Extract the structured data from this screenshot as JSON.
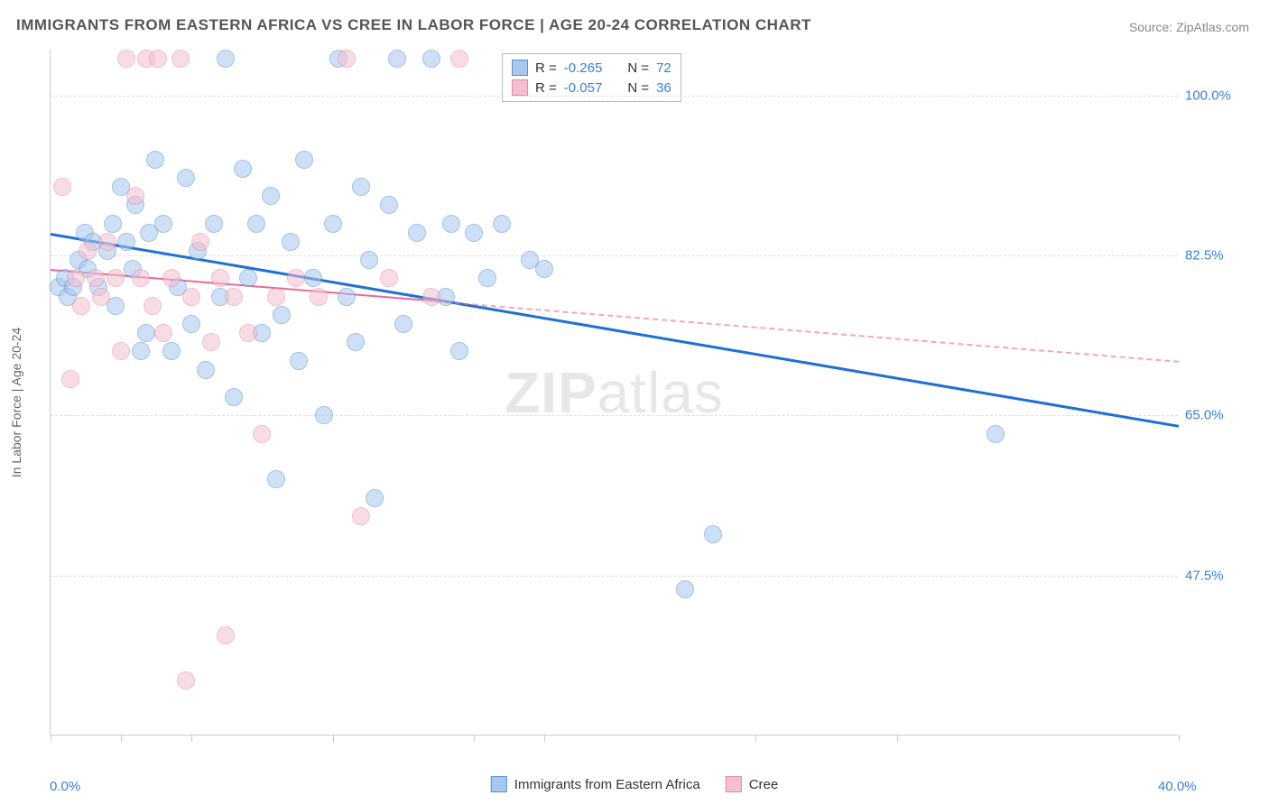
{
  "title": "IMMIGRANTS FROM EASTERN AFRICA VS CREE IN LABOR FORCE | AGE 20-24 CORRELATION CHART",
  "source": "Source: ZipAtlas.com",
  "y_axis_label": "In Labor Force | Age 20-24",
  "watermark_bold": "ZIP",
  "watermark_rest": "atlas",
  "chart": {
    "type": "scatter",
    "xlim": [
      0,
      40
    ],
    "ylim": [
      30,
      105
    ],
    "x_ticks": [
      0,
      2.5,
      5,
      10,
      15,
      17.5,
      25,
      30,
      40
    ],
    "y_gridlines": [
      47.5,
      65.0,
      82.5,
      100.0
    ],
    "y_tick_labels": [
      "47.5%",
      "65.0%",
      "82.5%",
      "100.0%"
    ],
    "x_min_label": "0.0%",
    "x_max_label": "40.0%",
    "background_color": "#ffffff",
    "grid_color": "#dddddd",
    "axis_color": "#cccccc",
    "tick_label_color": "#3b7dd8",
    "point_radius": 10,
    "point_opacity": 0.55,
    "series": [
      {
        "name": "Immigrants from Eastern Africa",
        "fill_color": "#a7c7ed",
        "stroke_color": "#5a8fd6",
        "trend_color": "#1f6fd4",
        "trend_width": 3,
        "trend_dash": "solid",
        "R": "-0.265",
        "N": "72",
        "trend": {
          "x1": 0,
          "y1": 85,
          "x2": 40,
          "y2": 64
        },
        "points": [
          [
            0.3,
            79
          ],
          [
            0.5,
            80
          ],
          [
            0.6,
            78
          ],
          [
            0.8,
            79
          ],
          [
            1.0,
            82
          ],
          [
            1.2,
            85
          ],
          [
            1.3,
            81
          ],
          [
            1.5,
            84
          ],
          [
            1.7,
            79
          ],
          [
            2.0,
            83
          ],
          [
            2.2,
            86
          ],
          [
            2.3,
            77
          ],
          [
            2.5,
            90
          ],
          [
            2.7,
            84
          ],
          [
            2.9,
            81
          ],
          [
            3.0,
            88
          ],
          [
            3.2,
            72
          ],
          [
            3.4,
            74
          ],
          [
            3.5,
            85
          ],
          [
            3.7,
            93
          ],
          [
            4.0,
            86
          ],
          [
            4.3,
            72
          ],
          [
            4.5,
            79
          ],
          [
            4.8,
            91
          ],
          [
            5.0,
            75
          ],
          [
            5.2,
            83
          ],
          [
            5.5,
            70
          ],
          [
            5.8,
            86
          ],
          [
            6.0,
            78
          ],
          [
            6.2,
            104
          ],
          [
            6.5,
            67
          ],
          [
            6.8,
            92
          ],
          [
            7.0,
            80
          ],
          [
            7.3,
            86
          ],
          [
            7.5,
            74
          ],
          [
            7.8,
            89
          ],
          [
            8.0,
            58
          ],
          [
            8.2,
            76
          ],
          [
            8.5,
            84
          ],
          [
            8.8,
            71
          ],
          [
            9.0,
            93
          ],
          [
            9.3,
            80
          ],
          [
            9.7,
            65
          ],
          [
            10.0,
            86
          ],
          [
            10.2,
            104
          ],
          [
            10.5,
            78
          ],
          [
            10.8,
            73
          ],
          [
            11.0,
            90
          ],
          [
            11.3,
            82
          ],
          [
            11.5,
            56
          ],
          [
            12.0,
            88
          ],
          [
            12.3,
            104
          ],
          [
            12.5,
            75
          ],
          [
            13.0,
            85
          ],
          [
            13.5,
            104
          ],
          [
            14.0,
            78
          ],
          [
            14.2,
            86
          ],
          [
            14.5,
            72
          ],
          [
            15.0,
            85
          ],
          [
            15.5,
            80
          ],
          [
            16.0,
            86
          ],
          [
            17.0,
            82
          ],
          [
            17.5,
            81
          ],
          [
            22.5,
            46
          ],
          [
            23.5,
            52
          ],
          [
            33.5,
            63
          ]
        ]
      },
      {
        "name": "Cree",
        "fill_color": "#f3c0cf",
        "stroke_color": "#e48aa5",
        "trend_color": "#e76a93",
        "trend_width": 2,
        "trend_dash": "dashed",
        "R": "-0.057",
        "N": "36",
        "trend": {
          "x1": 0,
          "y1": 81,
          "x2": 40,
          "y2": 71
        },
        "points": [
          [
            0.4,
            90
          ],
          [
            0.7,
            69
          ],
          [
            0.9,
            80
          ],
          [
            1.1,
            77
          ],
          [
            1.3,
            83
          ],
          [
            1.6,
            80
          ],
          [
            1.8,
            78
          ],
          [
            2.0,
            84
          ],
          [
            2.3,
            80
          ],
          [
            2.5,
            72
          ],
          [
            2.7,
            104
          ],
          [
            3.0,
            89
          ],
          [
            3.2,
            80
          ],
          [
            3.4,
            104
          ],
          [
            3.6,
            77
          ],
          [
            3.8,
            104
          ],
          [
            4.0,
            74
          ],
          [
            4.3,
            80
          ],
          [
            4.6,
            104
          ],
          [
            4.8,
            36
          ],
          [
            5.0,
            78
          ],
          [
            5.3,
            84
          ],
          [
            5.7,
            73
          ],
          [
            6.0,
            80
          ],
          [
            6.2,
            41
          ],
          [
            6.5,
            78
          ],
          [
            7.0,
            74
          ],
          [
            7.5,
            63
          ],
          [
            8.0,
            78
          ],
          [
            8.7,
            80
          ],
          [
            9.5,
            78
          ],
          [
            10.5,
            104
          ],
          [
            11.0,
            54
          ],
          [
            12.0,
            80
          ],
          [
            13.5,
            78
          ],
          [
            14.5,
            104
          ]
        ]
      }
    ]
  },
  "stats_legend": {
    "R_label": "R =",
    "N_label": "N ="
  },
  "bottom_legend": {
    "items": [
      "Immigrants from Eastern Africa",
      "Cree"
    ]
  }
}
